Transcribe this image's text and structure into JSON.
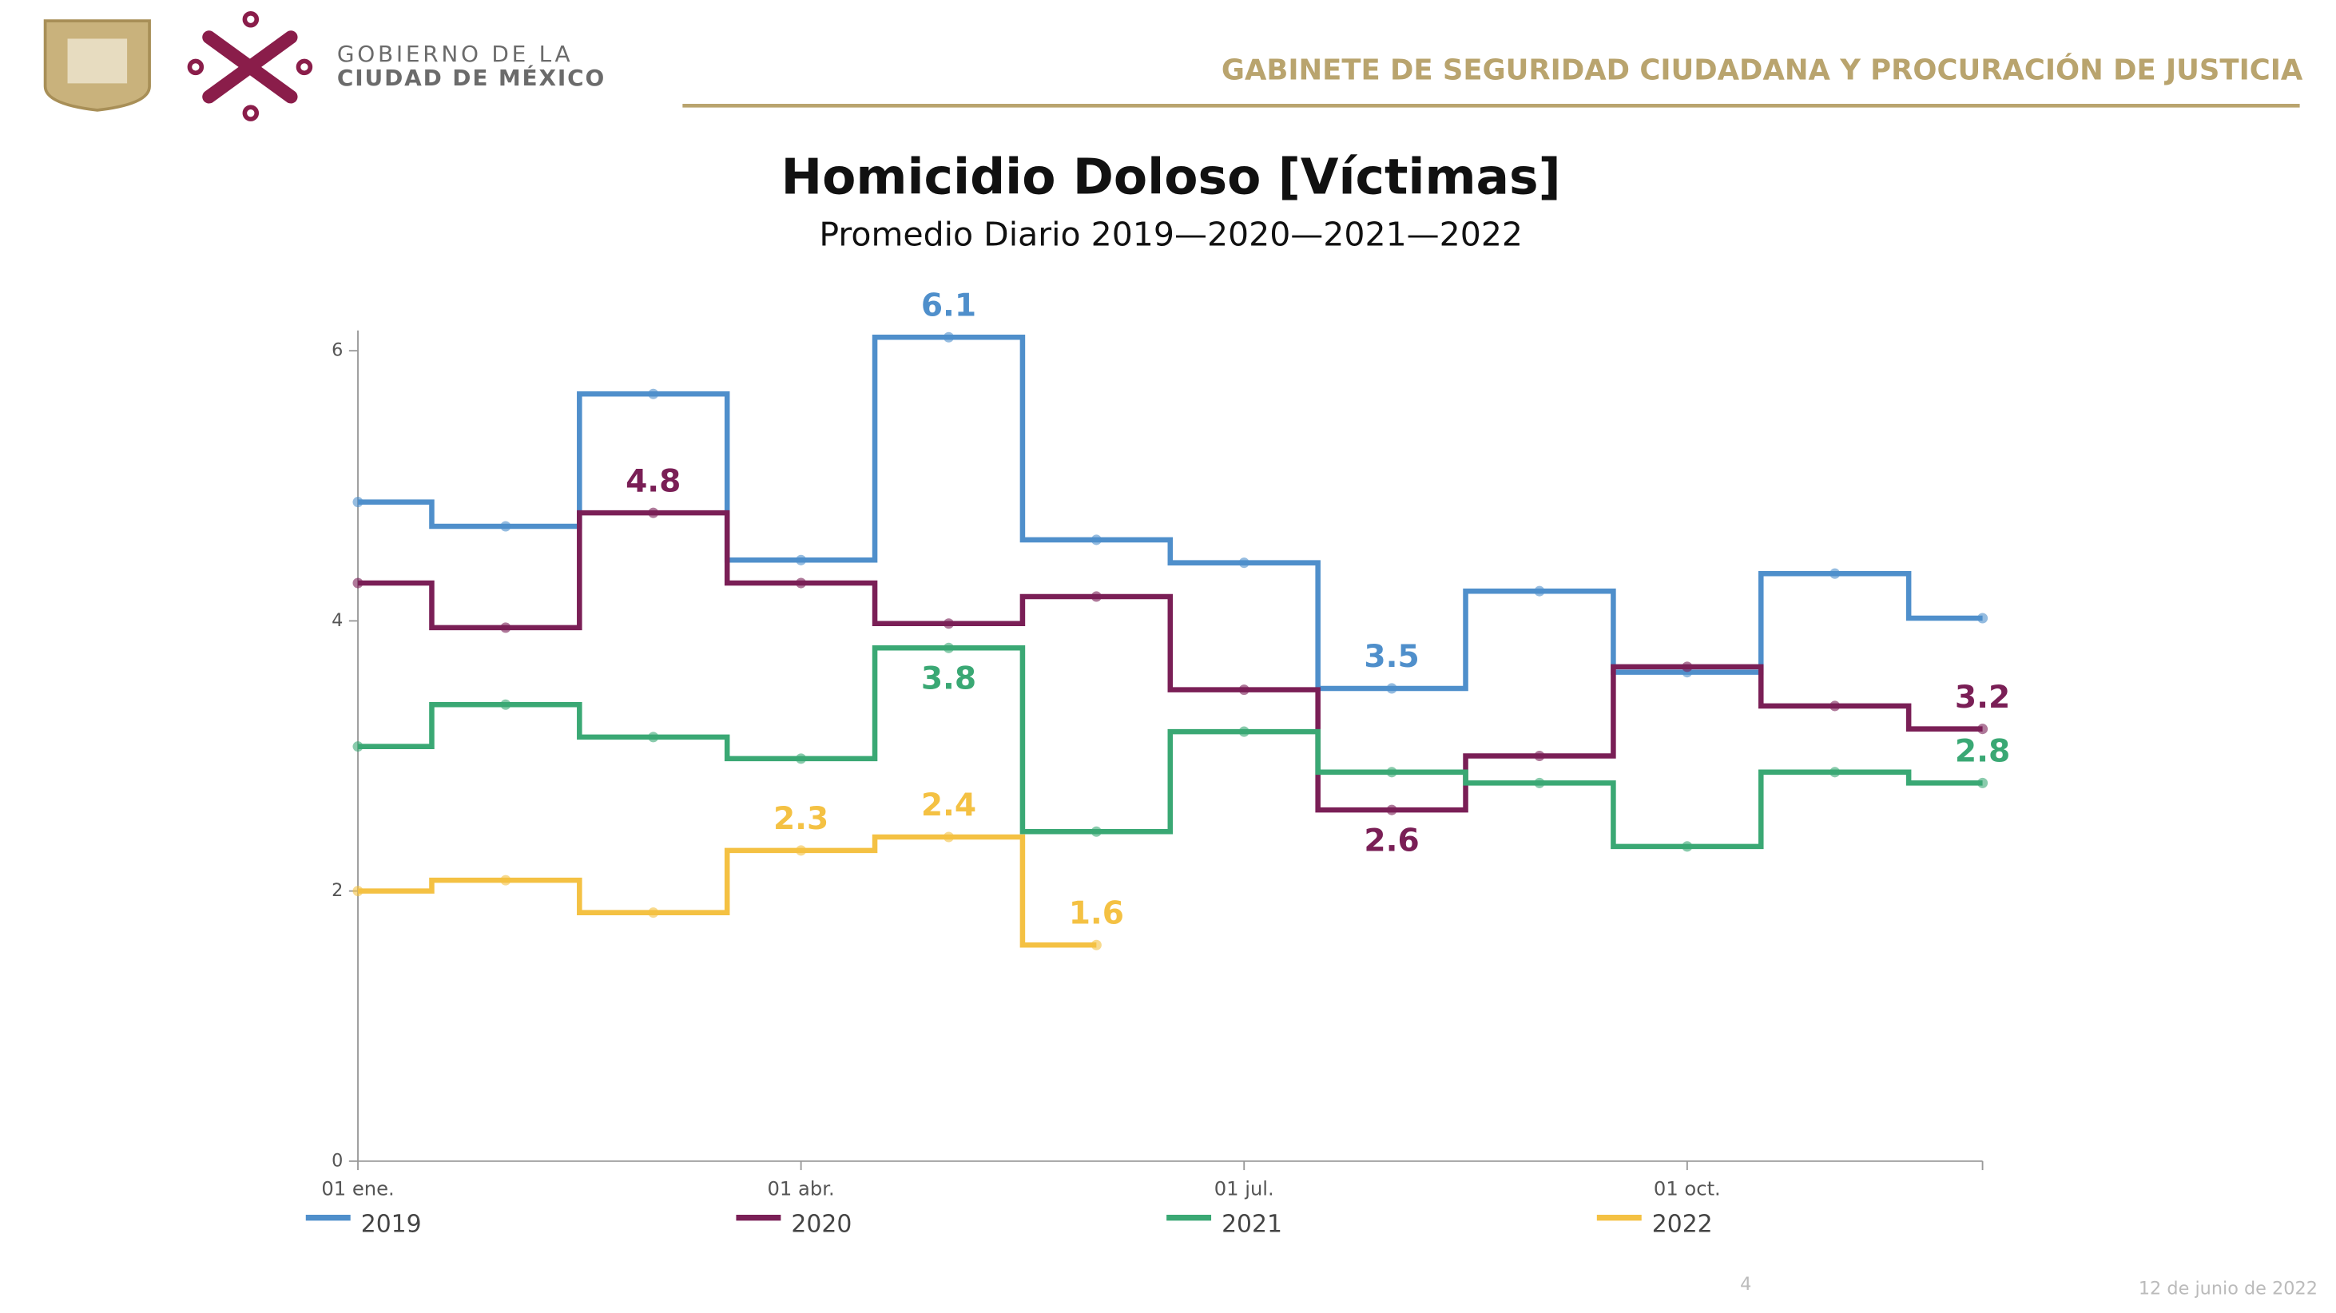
{
  "header": {
    "org_line1": "GOBIERNO DE LA",
    "org_line2": "CIUDAD DE MÉXICO",
    "cabinet": "GABINETE DE SEGURIDAD CIUDADANA Y PROCURACIÓN DE JUSTICIA"
  },
  "footer": {
    "page": "4",
    "date": "12 de junio de 2022"
  },
  "chart_data": {
    "type": "step",
    "title": "Homicidio Doloso [Víctimas]",
    "subtitle": "Promedio Diario 2019—2020—2021—2022",
    "categories": [
      "01 ene.",
      null,
      null,
      "01 abr.",
      null,
      null,
      "01 jul.",
      null,
      null,
      "01 oct.",
      null,
      null
    ],
    "ylim": [
      0,
      6.15
    ],
    "yticks": [
      0,
      2,
      4,
      6
    ],
    "series": [
      {
        "name": "2019",
        "color": "#4f8fcb",
        "values": [
          4.88,
          4.7,
          5.68,
          4.45,
          6.1,
          4.6,
          4.43,
          3.5,
          4.22,
          3.62,
          4.35,
          4.02
        ],
        "value_labels": [
          null,
          null,
          null,
          null,
          "6.1",
          null,
          null,
          "3.5",
          null,
          null,
          null,
          null
        ]
      },
      {
        "name": "2020",
        "color": "#7a1f56",
        "values": [
          4.28,
          3.95,
          4.8,
          4.28,
          3.98,
          4.18,
          3.49,
          2.6,
          3.0,
          3.66,
          3.37,
          3.2
        ],
        "value_labels": [
          null,
          null,
          "4.8",
          null,
          null,
          null,
          null,
          "2.6",
          null,
          null,
          null,
          "3.2"
        ]
      },
      {
        "name": "2021",
        "color": "#3aa874",
        "values": [
          3.07,
          3.38,
          3.14,
          2.98,
          3.8,
          2.44,
          3.18,
          2.88,
          2.8,
          2.33,
          2.88,
          2.8
        ],
        "value_labels": [
          null,
          null,
          null,
          null,
          "3.8",
          null,
          null,
          null,
          null,
          null,
          null,
          "2.8"
        ]
      },
      {
        "name": "2022",
        "color": "#f4c143",
        "values": [
          2.0,
          2.08,
          1.84,
          2.3,
          2.4,
          1.6,
          null,
          null,
          null,
          null,
          null,
          null
        ],
        "value_labels": [
          null,
          null,
          null,
          "2.3",
          "2.4",
          "1.6",
          null,
          null,
          null,
          null,
          null,
          null
        ]
      }
    ]
  }
}
